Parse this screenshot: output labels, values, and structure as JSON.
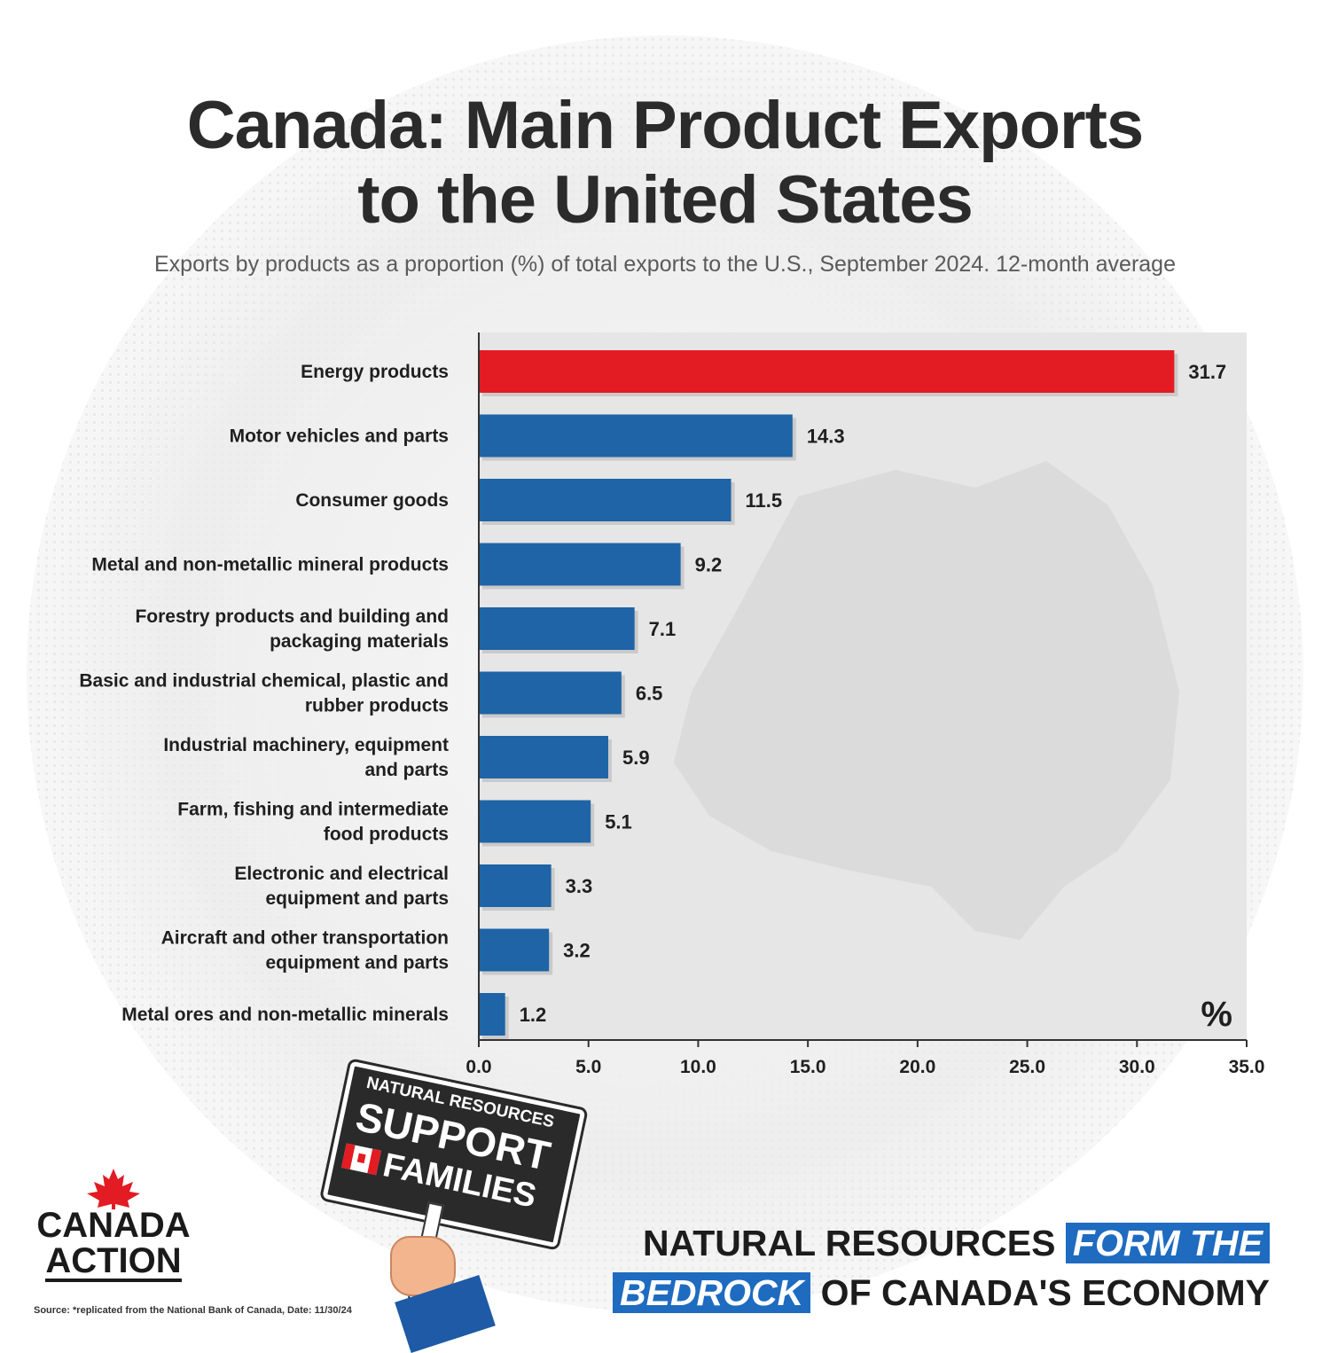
{
  "header": {
    "title_line1": "Canada: Main Product Exports",
    "title_line2": "to the United States",
    "subtitle": "Exports by products as a proportion (%) of total exports to the U.S., September 2024. 12-month average"
  },
  "colors": {
    "highlight_bar": "#e31b23",
    "bar": "#1e64a6",
    "plot_background": "#e6e6e6"
  },
  "chart_data": {
    "type": "bar",
    "orientation": "horizontal",
    "categories": [
      [
        "Energy products"
      ],
      [
        "Motor vehicles and parts"
      ],
      [
        "Consumer goods"
      ],
      [
        "Metal and non-metallic mineral products"
      ],
      [
        "Forestry products and building and",
        "packaging materials"
      ],
      [
        "Basic and industrial chemical, plastic and",
        "rubber products"
      ],
      [
        "Industrial machinery, equipment",
        "and parts"
      ],
      [
        "Farm, fishing and intermediate",
        "food products"
      ],
      [
        "Electronic and electrical",
        "equipment and parts"
      ],
      [
        "Aircraft and other transportation",
        "equipment and parts"
      ],
      [
        "Metal ores and non-metallic minerals"
      ]
    ],
    "values": [
      31.7,
      14.3,
      11.5,
      9.2,
      7.1,
      6.5,
      5.9,
      5.1,
      3.3,
      3.2,
      1.2
    ],
    "value_labels": [
      "31.7",
      "14.3",
      "11.5",
      "9.2",
      "7.1",
      "6.5",
      "5.9",
      "5.1",
      "3.3",
      "3.2",
      "1.2"
    ],
    "highlight_index": 0,
    "xlim": [
      0,
      35
    ],
    "ticks": [
      0,
      5,
      10,
      15,
      20,
      25,
      30,
      35
    ],
    "tick_labels": [
      "0.0",
      "5.0",
      "10.0",
      "15.0",
      "20.0",
      "25.0",
      "30.0",
      "35.0"
    ],
    "unit_label": "%",
    "grid": false
  },
  "sign": {
    "line1": "NATURAL RESOURCES",
    "line2": "SUPPORT",
    "line3": "FAMILIES"
  },
  "logo": {
    "line1": "CANADA",
    "line2": "ACTION"
  },
  "tagline": {
    "part1": "NATURAL RESOURCES",
    "part2": "FORM THE",
    "part3": "BEDROCK",
    "part4": "OF CANADA'S ECONOMY"
  },
  "source": "Source: *replicated from the National Bank of Canada, Date: 11/30/24"
}
